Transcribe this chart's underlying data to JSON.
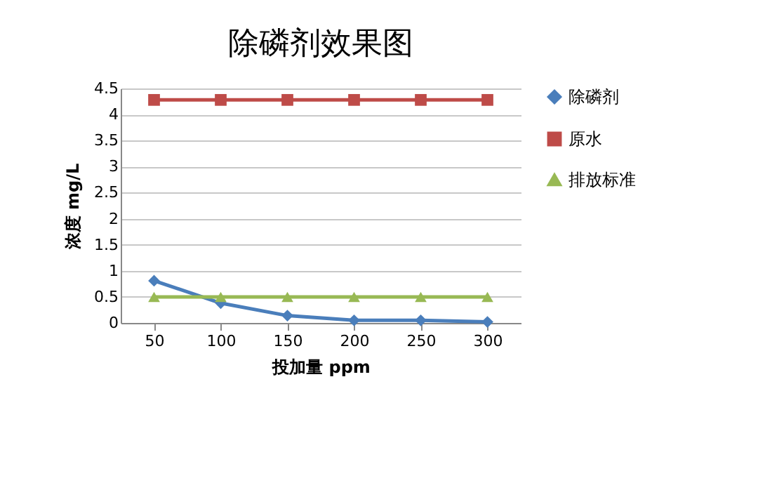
{
  "chart_data": {
    "type": "line",
    "title": "除磷剂效果图",
    "xlabel": "投加量 ppm",
    "ylabel": "浓度 mg/L",
    "categories": [
      "50",
      "100",
      "150",
      "200",
      "250",
      "300"
    ],
    "series": [
      {
        "name": "除磷剂",
        "color": "#4a7ebb",
        "marker": "diamond",
        "values": [
          0.81,
          0.38,
          0.14,
          0.05,
          0.05,
          0.02
        ]
      },
      {
        "name": "原水",
        "color": "#be4b48",
        "marker": "square",
        "values": [
          4.28,
          4.28,
          4.28,
          4.28,
          4.28,
          4.28
        ]
      },
      {
        "name": "排放标准",
        "color": "#98b954",
        "marker": "triangle",
        "values": [
          0.5,
          0.5,
          0.5,
          0.5,
          0.5,
          0.5
        ]
      }
    ],
    "ylim": [
      0,
      4.5
    ],
    "yticks": [
      0,
      0.5,
      1,
      1.5,
      2,
      2.5,
      3,
      3.5,
      4,
      4.5
    ],
    "grid": "y",
    "legend": "right"
  }
}
